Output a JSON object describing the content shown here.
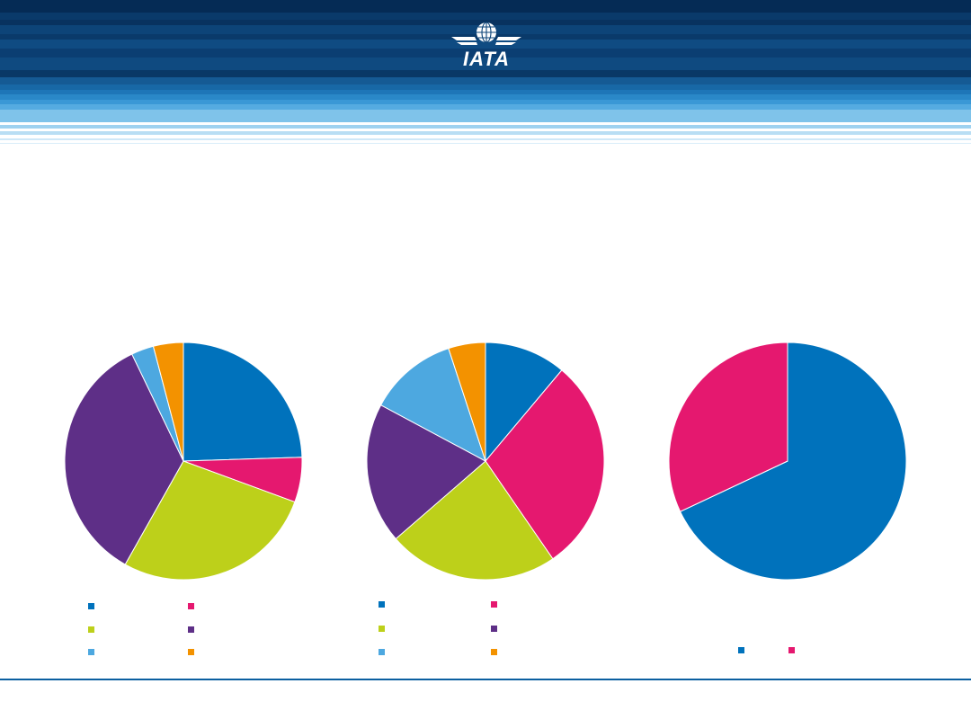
{
  "header": {
    "logo_text": "IATA",
    "colors": {
      "navy": "#0b3a6b",
      "mid_blue": "#1b6fb0",
      "light_blue": "#7fc3ea"
    }
  },
  "colors": {
    "blue": "#0072bc",
    "magenta": "#e5186f",
    "lime": "#bdd01a",
    "purple": "#5e2f87",
    "light_blue": "#4da8e0",
    "orange": "#f39200",
    "footer_line": "#0b5fa0"
  },
  "chart_data": [
    {
      "type": "pie",
      "values": [
        24,
        6,
        27,
        34,
        3,
        4
      ],
      "colors": [
        "#0072bc",
        "#e5186f",
        "#bdd01a",
        "#5e2f87",
        "#4da8e0",
        "#f39200"
      ],
      "legend": [
        "",
        "",
        "",
        "",
        "",
        ""
      ]
    },
    {
      "type": "pie",
      "values": [
        11,
        29,
        23,
        19,
        12,
        5
      ],
      "colors": [
        "#0072bc",
        "#e5186f",
        "#bdd01a",
        "#5e2f87",
        "#4da8e0",
        "#f39200"
      ],
      "legend": [
        "",
        "",
        "",
        "",
        "",
        ""
      ]
    },
    {
      "type": "pie",
      "values": [
        68,
        32
      ],
      "colors": [
        "#0072bc",
        "#e5186f"
      ],
      "legend": [
        "",
        ""
      ]
    }
  ]
}
